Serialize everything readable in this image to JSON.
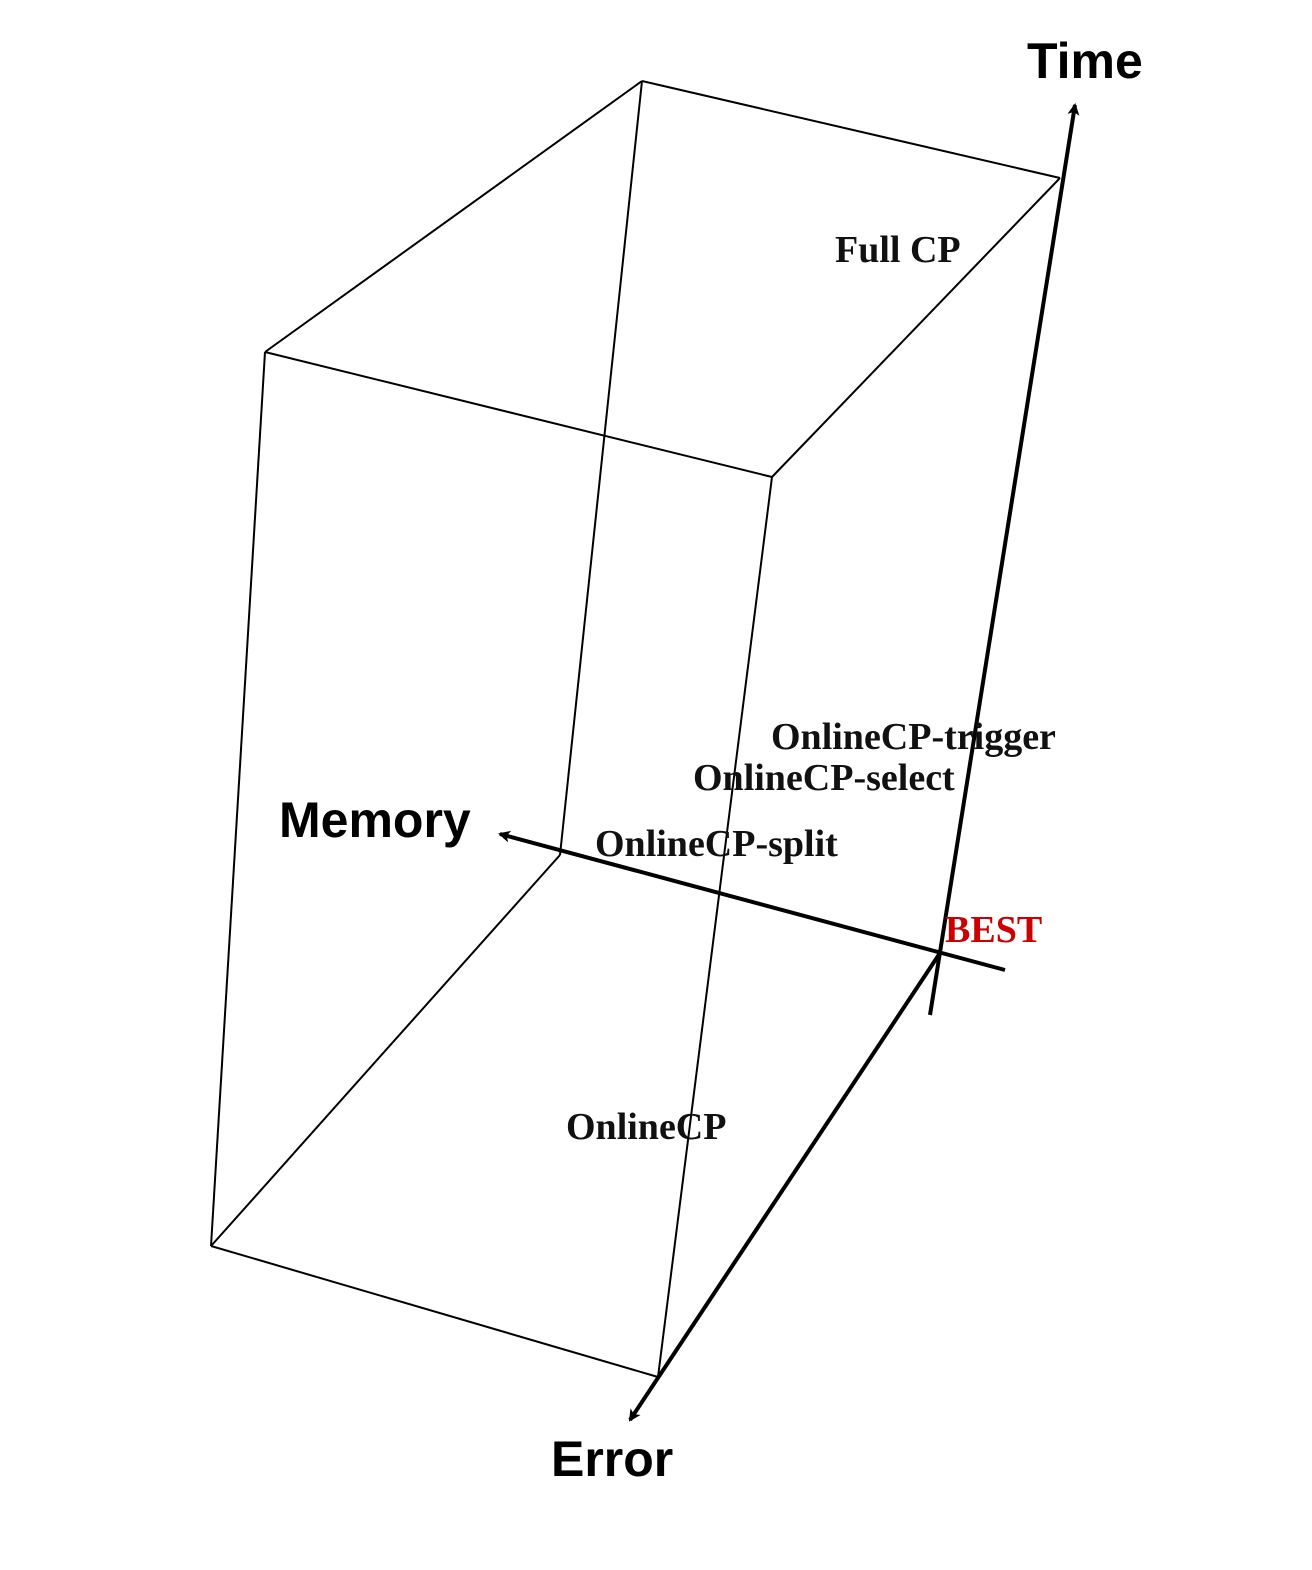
{
  "axes": {
    "time": "Time",
    "memory": "Memory",
    "error": "Error"
  },
  "methods": {
    "full_cp": "Full CP",
    "onlinecp_trigger": "OnlineCP-trigger",
    "onlinecp_select": "OnlineCP-select",
    "onlinecp_split": "OnlineCP-split",
    "onlinecp": "OnlineCP"
  },
  "best": {
    "label": "BEST",
    "color": "#cc0000"
  },
  "colors": {
    "edges": "#000000",
    "axes": "#000000",
    "labels": "#111111"
  }
}
